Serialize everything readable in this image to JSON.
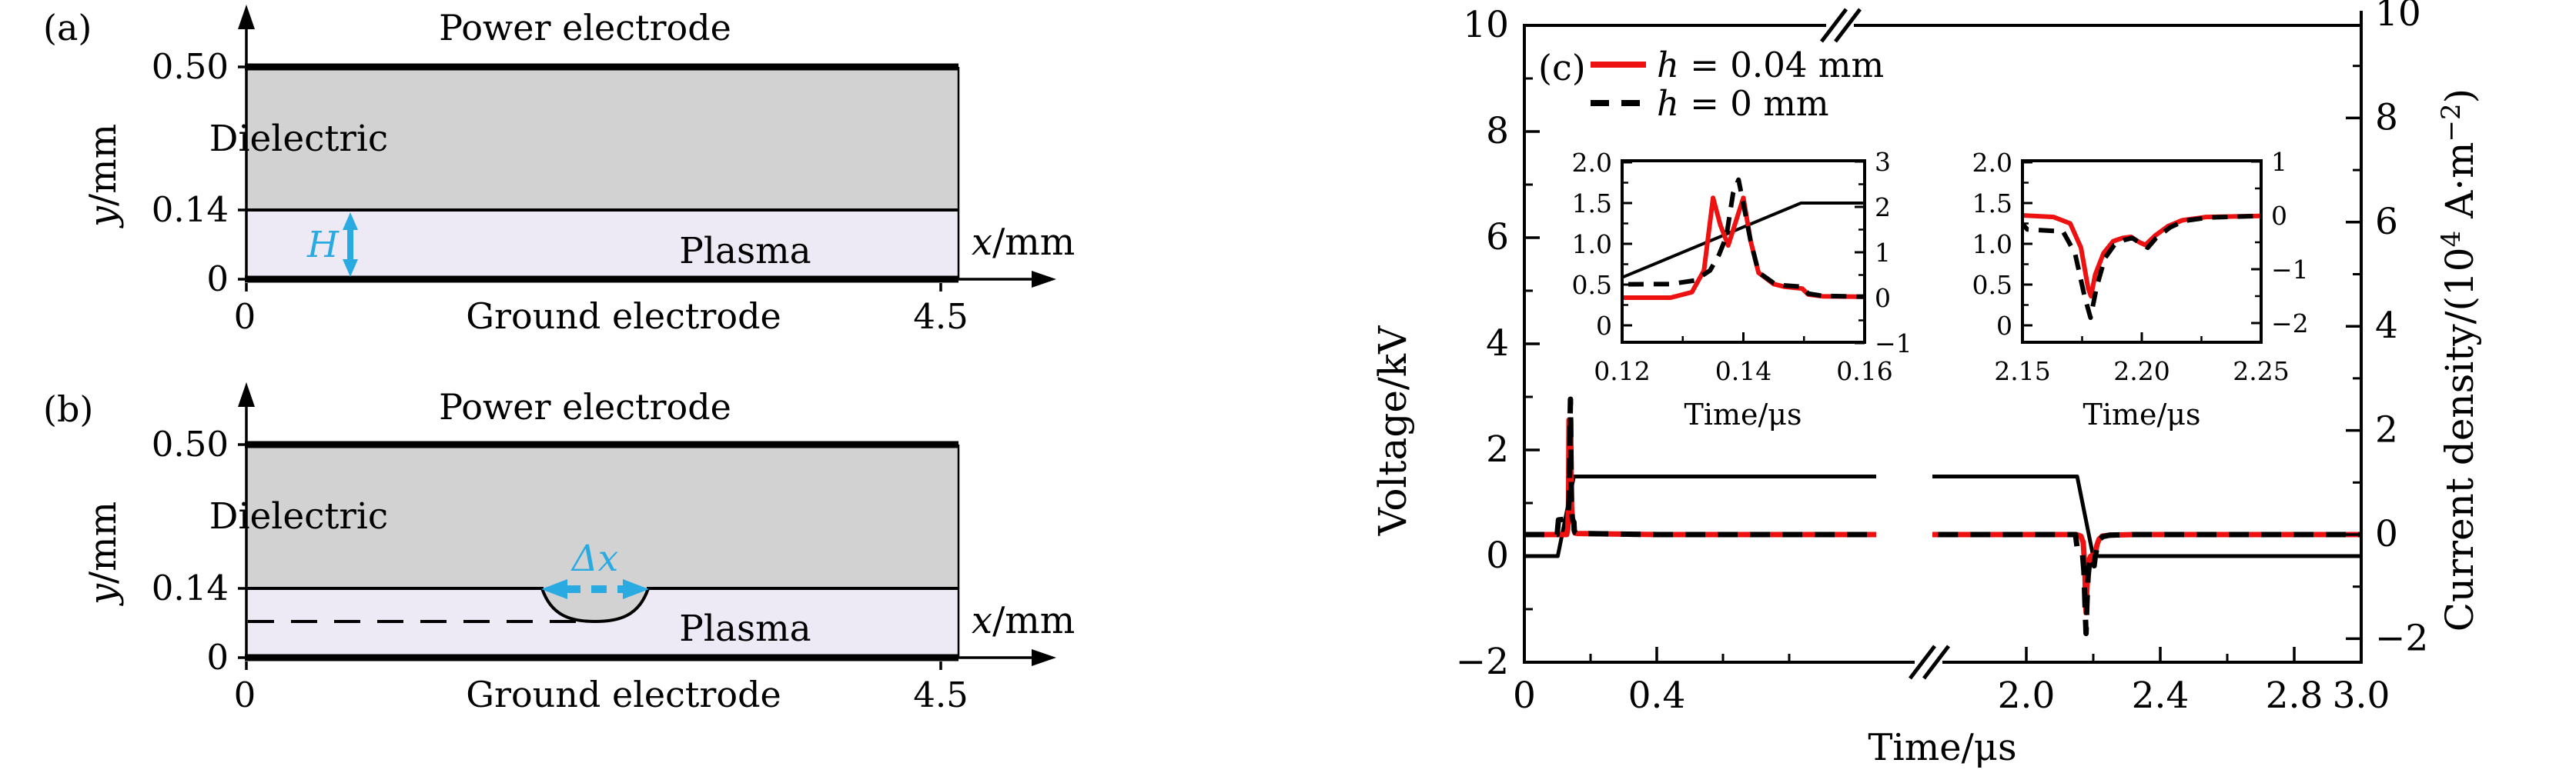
{
  "figure": {
    "panel_a": {
      "label": "(a)",
      "power_electrode": "Power electrode",
      "ground_electrode": "Ground electrode",
      "dielectric": "Dielectric",
      "plasma": "Plasma",
      "gap_label": "H",
      "y_var": "y",
      "y_unit": "/mm",
      "x_var": "x",
      "x_unit": "/mm",
      "y_ticks": [
        "0.50",
        "0.14",
        "0"
      ],
      "x_ticks": [
        "0",
        "4.5"
      ]
    },
    "panel_b": {
      "label": "(b)",
      "power_electrode": "Power electrode",
      "ground_electrode": "Ground electrode",
      "dielectric": "Dielectric",
      "plasma": "Plasma",
      "defect_width_label": "Δx",
      "y_var": "y",
      "y_unit": "/mm",
      "x_var": "x",
      "x_unit": "/mm",
      "y_ticks": [
        "0.50",
        "0.14",
        "0"
      ],
      "x_ticks": [
        "0",
        "4.5"
      ]
    },
    "panel_c_label": "(c)"
  },
  "colors": {
    "dielectric_gray": "#d2d2d2",
    "plasma_lavender": "#edeaf6",
    "accent_cyan": "#29abe2",
    "curve_red": "#ed1111",
    "ink": "#000000"
  },
  "chart_data": {
    "type": "line",
    "x_label": "Time/μs",
    "y_left_label": "Voltage/kV",
    "y_right_label_parts": [
      "Current density/(10",
      "4",
      " A·m",
      "−2",
      ")"
    ],
    "xlim": [
      0,
      3.0
    ],
    "x_axis_break": [
      1.06,
      1.72
    ],
    "ylim_left": [
      -2,
      10
    ],
    "ylim_right": [
      -2,
      10
    ],
    "x_tick_labels": [
      "0",
      "0.4",
      "2.0",
      "2.4",
      "2.8",
      "3.0"
    ],
    "y_left_tick_labels": [
      "10",
      "8",
      "6",
      "4",
      "2",
      "0",
      "−2"
    ],
    "y_right_tick_labels": [
      "10",
      "8",
      "6",
      "4",
      "2",
      "0",
      "−2"
    ],
    "grid": false,
    "legend_position": "top-left-inside",
    "legend": [
      {
        "label_var": "h",
        "label_rest": " = 0.04 mm",
        "style": "solid-red"
      },
      {
        "label_var": "h",
        "label_rest": " = 0 mm",
        "style": "dashed-black"
      }
    ],
    "series": [
      {
        "name": "voltage",
        "axis": "left",
        "style": "solid-black",
        "points": [
          [
            0,
            0
          ],
          [
            0.101,
            0
          ],
          [
            0.1495,
            1.5
          ],
          [
            2.152,
            1.5
          ],
          [
            2.1995,
            0
          ],
          [
            3,
            0
          ]
        ]
      },
      {
        "name": "current_h0.04",
        "axis": "right",
        "style": "solid-red",
        "points": [
          [
            0,
            0
          ],
          [
            0.128,
            0
          ],
          [
            0.1315,
            0.12
          ],
          [
            0.1335,
            0.6
          ],
          [
            0.135,
            2.2
          ],
          [
            0.1362,
            1.6
          ],
          [
            0.1375,
            1.15
          ],
          [
            0.1388,
            1.7
          ],
          [
            0.14,
            2.2
          ],
          [
            0.1412,
            1.25
          ],
          [
            0.1425,
            0.55
          ],
          [
            0.145,
            0.3
          ],
          [
            0.1468,
            0.24
          ],
          [
            0.1497,
            0.2
          ],
          [
            0.1507,
            0.07
          ],
          [
            0.153,
            0.03
          ],
          [
            0.16,
            0.02
          ],
          [
            0.4,
            0
          ],
          [
            1.06,
            0
          ],
          [
            1.72,
            0
          ],
          [
            2.15,
            0
          ],
          [
            2.163,
            -0.03
          ],
          [
            2.17,
            -0.15
          ],
          [
            2.1745,
            -0.6
          ],
          [
            2.1775,
            -1.35
          ],
          [
            2.1787,
            -1.5
          ],
          [
            2.1805,
            -1.1
          ],
          [
            2.184,
            -0.7
          ],
          [
            2.188,
            -0.48
          ],
          [
            2.192,
            -0.42
          ],
          [
            2.1955,
            -0.4
          ],
          [
            2.199,
            -0.5
          ],
          [
            2.2015,
            -0.55
          ],
          [
            2.2055,
            -0.38
          ],
          [
            2.211,
            -0.2
          ],
          [
            2.217,
            -0.09
          ],
          [
            2.227,
            -0.03
          ],
          [
            2.25,
            -0.01
          ],
          [
            2.32,
            0
          ],
          [
            3,
            0
          ]
        ]
      },
      {
        "name": "current_h0",
        "axis": "right",
        "style": "dashed-black",
        "points": [
          [
            0,
            0
          ],
          [
            0.099,
            0
          ],
          [
            0.103,
            0.28
          ],
          [
            0.128,
            0.3
          ],
          [
            0.132,
            0.38
          ],
          [
            0.1345,
            0.6
          ],
          [
            0.136,
            0.95
          ],
          [
            0.1372,
            1.35
          ],
          [
            0.1383,
            2.3
          ],
          [
            0.1392,
            2.6
          ],
          [
            0.1401,
            2.0
          ],
          [
            0.1412,
            1.25
          ],
          [
            0.1425,
            0.56
          ],
          [
            0.145,
            0.32
          ],
          [
            0.1468,
            0.27
          ],
          [
            0.1497,
            0.24
          ],
          [
            0.1507,
            0.09
          ],
          [
            0.153,
            0.04
          ],
          [
            0.16,
            0.02
          ],
          [
            0.4,
            0
          ],
          [
            1.06,
            0
          ],
          [
            1.72,
            0
          ],
          [
            2.147,
            0
          ],
          [
            2.152,
            -0.26
          ],
          [
            2.167,
            -0.3
          ],
          [
            2.172,
            -0.7
          ],
          [
            2.176,
            -1.5
          ],
          [
            2.1785,
            -1.9
          ],
          [
            2.181,
            -1.35
          ],
          [
            2.1845,
            -0.8
          ],
          [
            2.1885,
            -0.55
          ],
          [
            2.1925,
            -0.46
          ],
          [
            2.196,
            -0.42
          ],
          [
            2.1995,
            -0.52
          ],
          [
            2.2025,
            -0.6
          ],
          [
            2.206,
            -0.42
          ],
          [
            2.212,
            -0.22
          ],
          [
            2.218,
            -0.1
          ],
          [
            2.228,
            -0.04
          ],
          [
            2.25,
            -0.01
          ],
          [
            2.32,
            0
          ],
          [
            3,
            0
          ]
        ]
      }
    ],
    "insets": [
      {
        "name": "first-discharge-pulse",
        "xlim": [
          0.12,
          0.16
        ],
        "x_tick_labels": [
          "0.12",
          "0.14",
          "0.16"
        ],
        "x_label": "Time/μs",
        "ylim_left": [
          0,
          2.0
        ],
        "y_left_tick_labels": [
          "2.0",
          "1.5",
          "1.0",
          "0.5",
          "0"
        ],
        "ylim_right": [
          -1,
          3
        ],
        "y_right_tick_labels": [
          "3",
          "2",
          "1",
          "0",
          "−1"
        ],
        "show_series": [
          "voltage",
          "current_h0.04",
          "current_h0"
        ]
      },
      {
        "name": "second-discharge-pulse",
        "xlim": [
          2.15,
          2.25
        ],
        "x_tick_labels": [
          "2.15",
          "2.20",
          "2.25"
        ],
        "x_label": "Time/μs",
        "ylim_left": [
          0,
          2.0
        ],
        "y_left_tick_labels": [
          "2.0",
          "1.5",
          "1.0",
          "0.5",
          "0"
        ],
        "ylim_right": [
          -2,
          1
        ],
        "y_right_tick_labels": [
          "1",
          "0",
          "−1",
          "−2"
        ],
        "show_series": [
          "current_h0.04",
          "current_h0"
        ]
      }
    ]
  }
}
